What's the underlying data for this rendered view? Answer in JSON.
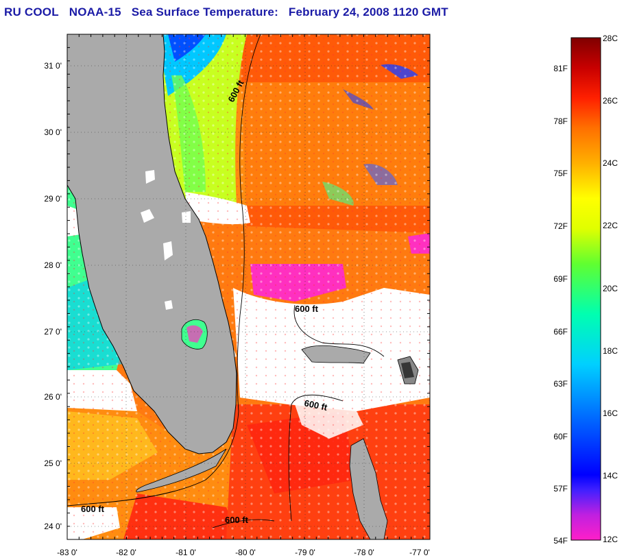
{
  "title": {
    "org": "RU COOL",
    "satellite": "NOAA-15",
    "product": "Sea Surface Temperature:",
    "date": "February 24, 2008 1120 GMT"
  },
  "map": {
    "lat_ticks": [
      "31 0'",
      "30 0'",
      "29 0'",
      "28 0'",
      "27 0'",
      "26 0'",
      "25 0'",
      "24 0'"
    ],
    "lon_ticks": [
      "-83 0'",
      "-82 0'",
      "-81 0'",
      "-80 0'",
      "-79 0'",
      "-78 0'",
      "-77 0'"
    ],
    "lat_range": [
      23.9,
      31.45
    ],
    "lon_range": [
      -83.0,
      -76.9
    ],
    "isobath_label": "600 ft",
    "colors": {
      "land": "#aaaaaa",
      "cloud": "#ffffff",
      "coast": "#000000"
    }
  },
  "colorbar": {
    "celsius_labels": [
      "28C",
      "26C",
      "24C",
      "22C",
      "20C",
      "18C",
      "16C",
      "14C",
      "12C"
    ],
    "fahrenheit_labels": [
      "81F",
      "78F",
      "75F",
      "72F",
      "69F",
      "66F",
      "63F",
      "60F",
      "57F",
      "54F"
    ],
    "range_c": [
      12,
      28
    ],
    "gradient_colors": [
      "#ff1fc8",
      "#a020f0",
      "#0000ff",
      "#0060ff",
      "#00c0ff",
      "#00ffb0",
      "#40ff40",
      "#c8ff00",
      "#ffff00",
      "#ffb000",
      "#ff7000",
      "#ff2000",
      "#d00000",
      "#800000"
    ]
  }
}
